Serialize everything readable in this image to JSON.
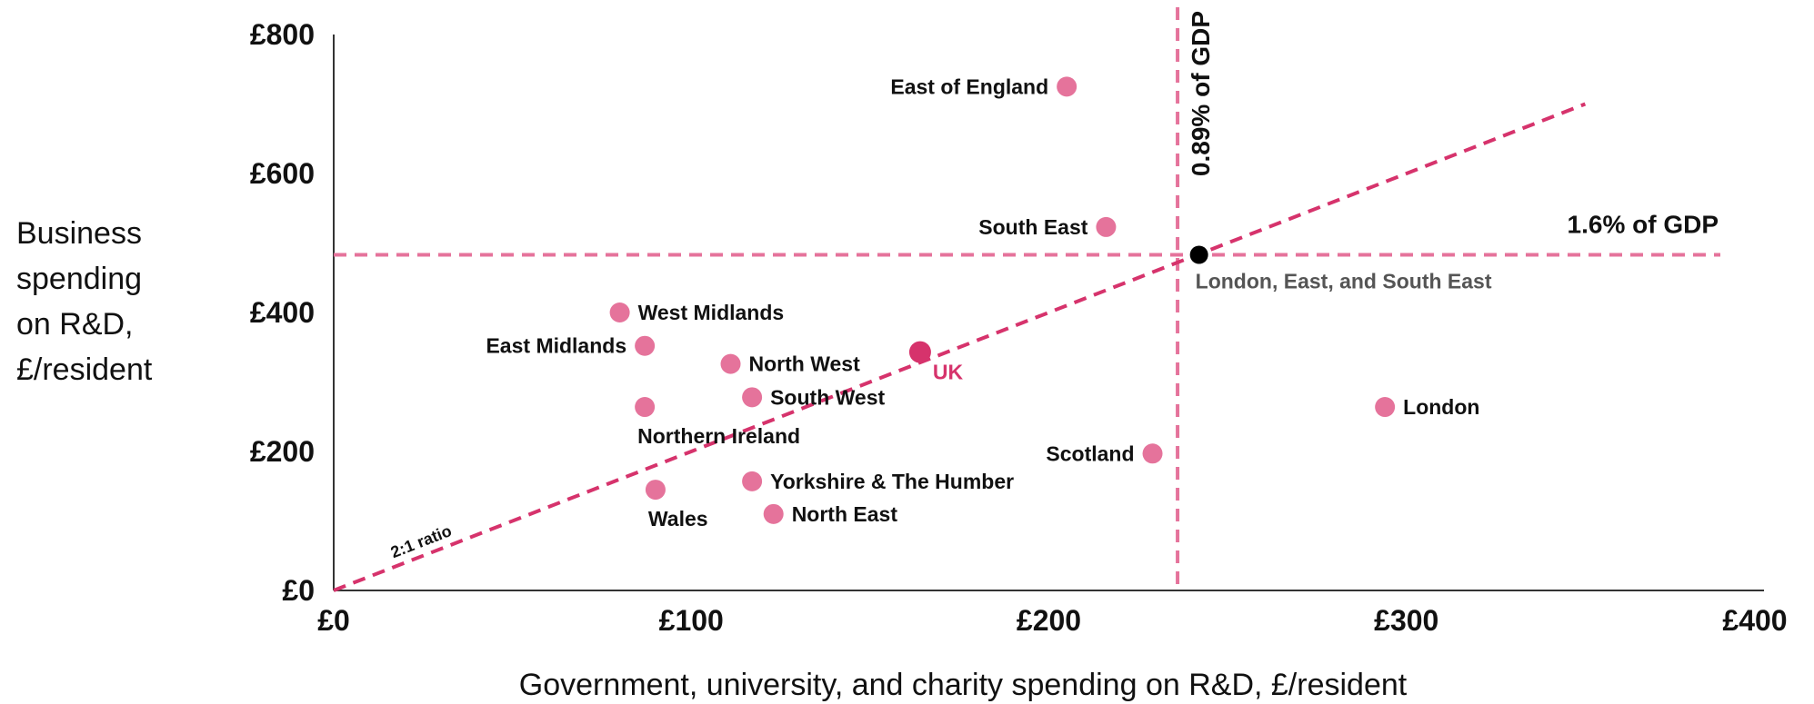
{
  "chart_data": {
    "type": "scatter",
    "title": "",
    "xlabel": "Government, university, and charity spending on R&D, £/resident",
    "ylabel_lines": [
      "Business",
      "spending",
      "on R&D,",
      "£/resident"
    ],
    "xlim": [
      0,
      400
    ],
    "ylim": [
      0,
      800
    ],
    "x_ticks": [
      {
        "value": 0,
        "label": "£0"
      },
      {
        "value": 100,
        "label": "£100"
      },
      {
        "value": 200,
        "label": "£200"
      },
      {
        "value": 300,
        "label": "£300"
      },
      {
        "value": 400,
        "label": "£400"
      }
    ],
    "y_ticks": [
      {
        "value": 0,
        "label": "£0"
      },
      {
        "value": 200,
        "label": "£200"
      },
      {
        "value": 400,
        "label": "£400"
      },
      {
        "value": 600,
        "label": "£600"
      },
      {
        "value": 800,
        "label": "£800"
      }
    ],
    "grid": false,
    "points": [
      {
        "name": "East of England",
        "x": 205,
        "y": 725,
        "label_pos": "left"
      },
      {
        "name": "South East",
        "x": 216,
        "y": 523,
        "label_pos": "left"
      },
      {
        "name": "West Midlands",
        "x": 80,
        "y": 400,
        "label_pos": "right"
      },
      {
        "name": "East Midlands",
        "x": 87,
        "y": 352,
        "label_pos": "left"
      },
      {
        "name": "North West",
        "x": 111,
        "y": 326,
        "label_pos": "right"
      },
      {
        "name": "South West",
        "x": 117,
        "y": 278,
        "label_pos": "right"
      },
      {
        "name": "Northern Ireland",
        "x": 87,
        "y": 264,
        "label_pos": "below"
      },
      {
        "name": "Scotland",
        "x": 229,
        "y": 197,
        "label_pos": "left"
      },
      {
        "name": "Yorkshire & The Humber",
        "x": 117,
        "y": 157,
        "label_pos": "right"
      },
      {
        "name": "Wales",
        "x": 90,
        "y": 145,
        "label_pos": "below"
      },
      {
        "name": "North East",
        "x": 123,
        "y": 110,
        "label_pos": "right"
      },
      {
        "name": "London",
        "x": 294,
        "y": 264,
        "label_pos": "right"
      }
    ],
    "uk_point": {
      "name": "UK",
      "x": 164,
      "y": 343
    },
    "combined_point": {
      "name": "London, East, and South East",
      "x": 242,
      "y": 483
    },
    "reference_lines": {
      "vertical": {
        "x": 236,
        "label": "0.89% of GDP"
      },
      "horizontal": {
        "y": 483,
        "label": "1.6% of GDP"
      },
      "ratio": {
        "label": "2:1 ratio",
        "slope": 2,
        "x_end": 350
      }
    },
    "colors": {
      "point": "#e5739b",
      "uk": "#d6336c",
      "combined": "#000000",
      "reference": "#e5739b",
      "ratio_line": "#d6336c",
      "axis": "#333333"
    }
  }
}
